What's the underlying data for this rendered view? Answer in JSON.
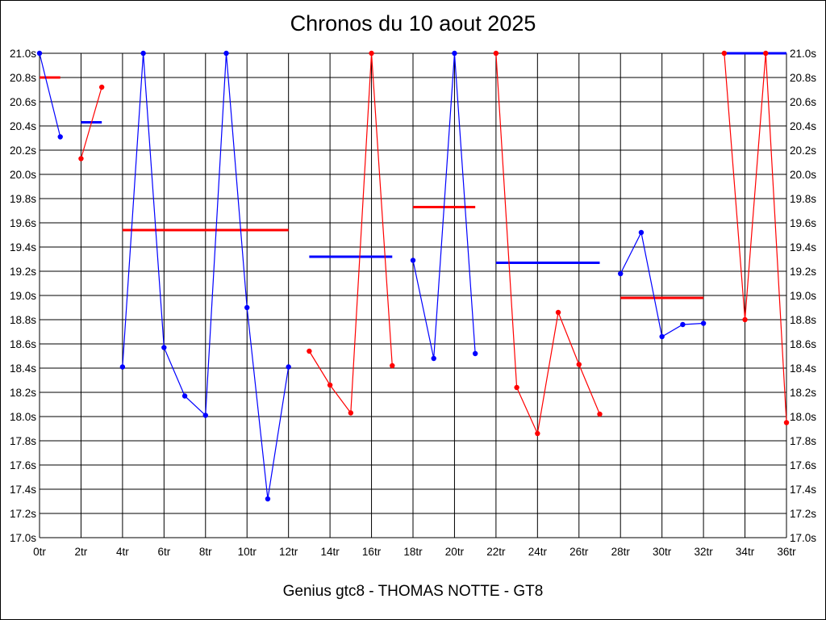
{
  "chart_data": {
    "type": "line",
    "title": "Chronos du 10 aout 2025",
    "subtitle": "Genius gtc8 - THOMAS NOTTE - GT8",
    "xlim": [
      0,
      36
    ],
    "ylim": [
      17.0,
      21.0
    ],
    "x_ticks": [
      "0tr",
      "2tr",
      "4tr",
      "6tr",
      "8tr",
      "10tr",
      "12tr",
      "14tr",
      "16tr",
      "18tr",
      "20tr",
      "22tr",
      "24tr",
      "26tr",
      "28tr",
      "30tr",
      "32tr",
      "34tr",
      "36tr"
    ],
    "y_ticks": [
      "17.0s",
      "17.2s",
      "17.4s",
      "17.6s",
      "17.8s",
      "18.0s",
      "18.2s",
      "18.4s",
      "18.6s",
      "18.8s",
      "19.0s",
      "19.2s",
      "19.4s",
      "19.6s",
      "19.8s",
      "20.0s",
      "20.2s",
      "20.4s",
      "20.6s",
      "20.8s",
      "21.0s"
    ],
    "grid": true,
    "colors": {
      "blue": "#0000ff",
      "red": "#ff0000",
      "grid": "#000000"
    },
    "segments": [
      {
        "color": "blue",
        "points": [
          [
            0,
            21.0
          ],
          [
            1,
            20.31
          ]
        ],
        "mean": 20.8,
        "mean_color": "red",
        "mean_from": 0,
        "mean_to": 1
      },
      {
        "color": "red",
        "points": [
          [
            2,
            20.13
          ],
          [
            3,
            20.72
          ]
        ],
        "mean": 20.43,
        "mean_color": "blue",
        "mean_from": 2,
        "mean_to": 3
      },
      {
        "color": "blue",
        "points": [
          [
            4,
            18.41
          ],
          [
            5,
            21.0
          ],
          [
            6,
            18.57
          ],
          [
            7,
            18.17
          ],
          [
            8,
            18.01
          ],
          [
            9,
            21.0
          ],
          [
            10,
            18.9
          ],
          [
            11,
            17.32
          ],
          [
            12,
            18.41
          ]
        ],
        "mean": 19.54,
        "mean_color": "red",
        "mean_from": 4,
        "mean_to": 12
      },
      {
        "color": "red",
        "points": [
          [
            13,
            18.54
          ],
          [
            14,
            18.26
          ],
          [
            15,
            18.03
          ],
          [
            16,
            21.0
          ],
          [
            17,
            18.42
          ]
        ],
        "mean": 19.32,
        "mean_color": "blue",
        "mean_from": 13,
        "mean_to": 17
      },
      {
        "color": "blue",
        "points": [
          [
            18,
            19.29
          ],
          [
            19,
            18.48
          ],
          [
            20,
            21.0
          ],
          [
            21,
            18.52
          ]
        ],
        "mean": 19.73,
        "mean_color": "red",
        "mean_from": 18,
        "mean_to": 21
      },
      {
        "color": "red",
        "points": [
          [
            22,
            21.0
          ],
          [
            23,
            18.24
          ],
          [
            24,
            17.86
          ],
          [
            25,
            18.86
          ],
          [
            26,
            18.43
          ],
          [
            27,
            18.02
          ]
        ],
        "mean": 19.27,
        "mean_color": "blue",
        "mean_from": 22,
        "mean_to": 27
      },
      {
        "color": "blue",
        "points": [
          [
            28,
            19.18
          ],
          [
            29,
            19.52
          ],
          [
            30,
            18.66
          ],
          [
            31,
            18.76
          ],
          [
            32,
            18.77
          ]
        ],
        "mean": 18.98,
        "mean_color": "red",
        "mean_from": 28,
        "mean_to": 32
      },
      {
        "color": "red",
        "points": [
          [
            33,
            21.0
          ],
          [
            34,
            18.8
          ],
          [
            35,
            21.0
          ],
          [
            36,
            17.95
          ]
        ],
        "mean": 21.0,
        "mean_color": "blue",
        "mean_from": 33,
        "mean_to": 36
      }
    ]
  }
}
